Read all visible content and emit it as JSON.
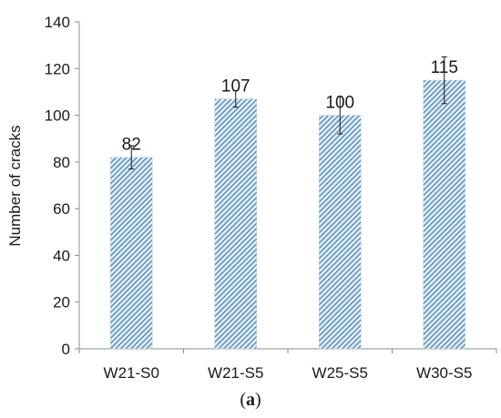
{
  "chart_data": {
    "type": "bar",
    "categories": [
      "W21-S0",
      "W21-S5",
      "W25-S5",
      "W30-S5"
    ],
    "values": [
      82,
      107,
      100,
      115
    ],
    "errors": [
      5,
      3.5,
      8,
      10
    ],
    "data_labels": [
      "82",
      "107",
      "100",
      "115"
    ],
    "ylabel": "Number of cracks",
    "xlabel": "",
    "ylim": [
      0,
      140
    ],
    "yticks": [
      0,
      20,
      40,
      60,
      80,
      100,
      120,
      140
    ],
    "ytick_labels": [
      "0",
      "20",
      "40",
      "60",
      "80",
      "100",
      "120",
      "140"
    ],
    "grid": false,
    "legend": "none",
    "bar_color": "#2e6f9e",
    "bar_fill_color": "#dbe9f3"
  },
  "panel_label": {
    "open": "(",
    "letter": "a",
    "close": ")"
  }
}
